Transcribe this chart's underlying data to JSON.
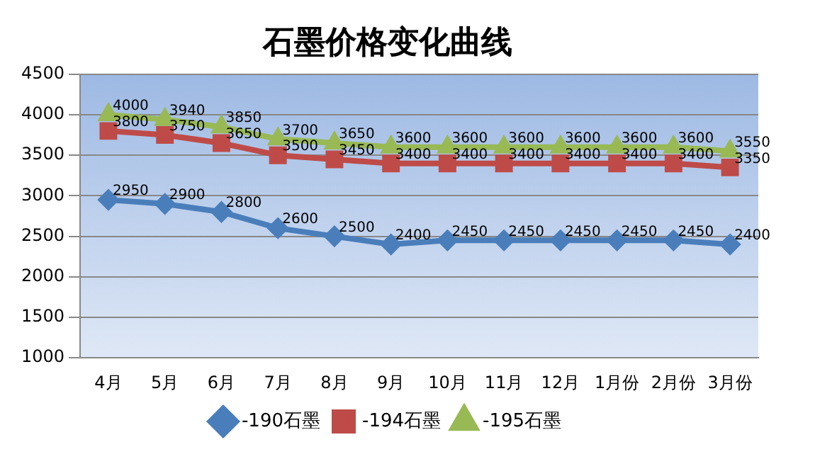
{
  "chart_data": {
    "type": "line",
    "title": "石墨价格变化曲线",
    "categories": [
      "4月",
      "5月",
      "6月",
      "7月",
      "8月",
      "9月",
      "10月",
      "11月",
      "12月",
      "1月份",
      "2月份",
      "3月份"
    ],
    "series": [
      {
        "name": "-190石墨",
        "color": "#4a7ebb",
        "marker": "diamond",
        "values": [
          2950,
          2900,
          2800,
          2600,
          2500,
          2400,
          2450,
          2450,
          2450,
          2450,
          2450,
          2400
        ]
      },
      {
        "name": "-194石墨",
        "color": "#be4b48",
        "marker": "square",
        "values": [
          3800,
          3750,
          3650,
          3500,
          3450,
          3400,
          3400,
          3400,
          3400,
          3400,
          3400,
          3350
        ]
      },
      {
        "name": "-195石墨",
        "color": "#98b954",
        "marker": "triangle",
        "values": [
          4000,
          3940,
          3850,
          3700,
          3650,
          3600,
          3600,
          3600,
          3600,
          3600,
          3600,
          3550
        ]
      }
    ],
    "ylim": [
      1000,
      4500
    ],
    "yticks": [
      1000,
      1500,
      2000,
      2500,
      3000,
      3500,
      4000,
      4500
    ],
    "grid": "y",
    "legend": "bottom",
    "data_labels": true,
    "line_style": "solid"
  }
}
